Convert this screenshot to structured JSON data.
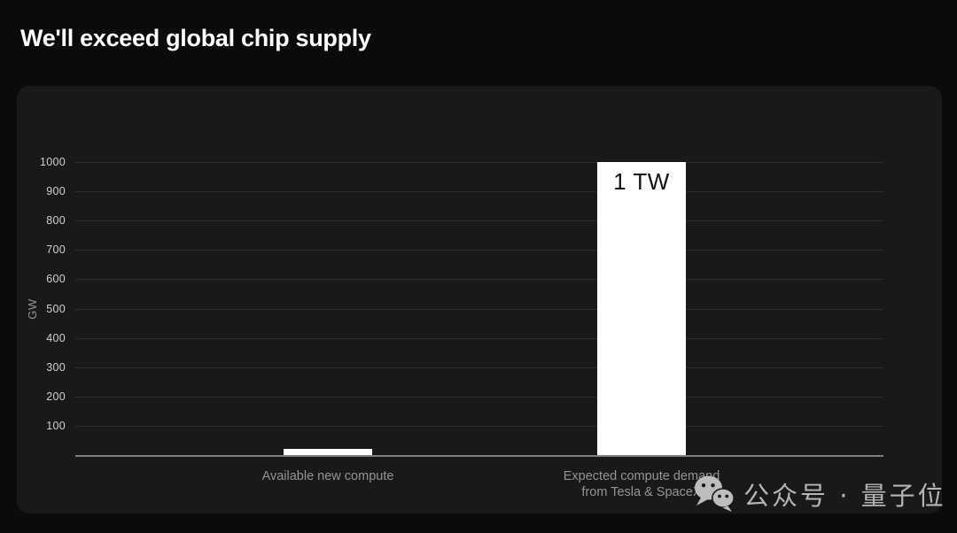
{
  "slide": {
    "title": "We'll exceed global chip supply"
  },
  "chart_data": {
    "type": "bar",
    "title": "We'll exceed global chip supply",
    "categories": [
      "Available new compute",
      "Expected compute demand from Tesla & SpaceX"
    ],
    "label_lines": [
      [
        "Available new compute"
      ],
      [
        "Expected compute demand",
        "from Tesla & SpaceX"
      ]
    ],
    "values": [
      22,
      1000
    ],
    "bar_labels": [
      "",
      "1 TW"
    ],
    "units": "GW",
    "ylabel": "GW",
    "ylim": [
      0,
      1000
    ],
    "yticks": [
      100,
      200,
      300,
      400,
      500,
      600,
      700,
      800,
      900,
      1000
    ],
    "grid": true,
    "legend": false,
    "bar_color": "#ffffff"
  },
  "watermark": {
    "icon": "wechat-icon",
    "text": "公众号 · 量子位"
  },
  "colors": {
    "page_bg": "#0b0b0b",
    "panel_bg": "#191919",
    "grid": "#2e2e2e",
    "axis": "#7f7f7f",
    "tick_label": "#d0d0d0",
    "category_label": "#949494",
    "title": "#ffffff",
    "bar": "#ffffff",
    "bar_annot": "#141414",
    "watermark": "#b5b5b5"
  }
}
